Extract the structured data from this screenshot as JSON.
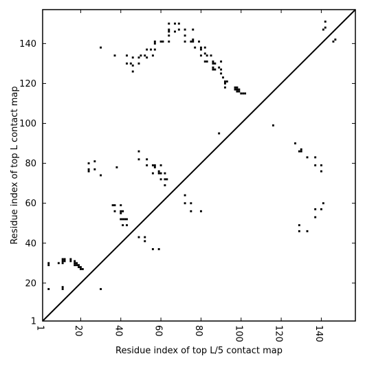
{
  "chart_data": {
    "type": "scatter",
    "xlabel": "Residue index of top L/5 contact map",
    "ylabel": "Residue index of top L contact map",
    "xlim": [
      1,
      157
    ],
    "ylim": [
      1,
      157
    ],
    "x_ticks": [
      1,
      20,
      40,
      60,
      80,
      100,
      120,
      140
    ],
    "y_ticks": [
      1,
      20,
      40,
      60,
      80,
      100,
      120,
      140
    ],
    "diagonal": true,
    "marker_color": "#000000",
    "series": [
      {
        "values": [
          [
            30,
            138
          ],
          [
            37,
            134
          ],
          [
            43,
            134
          ],
          [
            43,
            130
          ],
          [
            45,
            130
          ],
          [
            46,
            129
          ],
          [
            46,
            126
          ],
          [
            46,
            133
          ],
          [
            49,
            133
          ],
          [
            49,
            130
          ],
          [
            50,
            134
          ],
          [
            52,
            134
          ],
          [
            53,
            133
          ],
          [
            53,
            137
          ],
          [
            55,
            137
          ],
          [
            56,
            134
          ],
          [
            57,
            137
          ],
          [
            57,
            140
          ],
          [
            57,
            141
          ],
          [
            60,
            141
          ],
          [
            61,
            141
          ],
          [
            64,
            141
          ],
          [
            64,
            144
          ],
          [
            64,
            146
          ],
          [
            64,
            147
          ],
          [
            64,
            150
          ],
          [
            67,
            150
          ],
          [
            67,
            146
          ],
          [
            69,
            147
          ],
          [
            69,
            150
          ],
          [
            72,
            147
          ],
          [
            72,
            144
          ],
          [
            72,
            141
          ],
          [
            75,
            141
          ],
          [
            76,
            141
          ],
          [
            76,
            142
          ],
          [
            76,
            147
          ],
          [
            77,
            138
          ],
          [
            79,
            141
          ],
          [
            80,
            138
          ],
          [
            80,
            137
          ],
          [
            80,
            134
          ],
          [
            82,
            138
          ],
          [
            82,
            135
          ],
          [
            82,
            131
          ],
          [
            83,
            134
          ],
          [
            83,
            131
          ],
          [
            85,
            134
          ],
          [
            86,
            131
          ],
          [
            86,
            130
          ],
          [
            86,
            128
          ],
          [
            86,
            127
          ],
          [
            87,
            130
          ],
          [
            87,
            127
          ],
          [
            89,
            128
          ],
          [
            90,
            131
          ],
          [
            90,
            127
          ],
          [
            90,
            125
          ],
          [
            91,
            123
          ],
          [
            92,
            121
          ],
          [
            92,
            120
          ],
          [
            92,
            118
          ],
          [
            93,
            121
          ],
          [
            97,
            118
          ],
          [
            97,
            117
          ],
          [
            98,
            118
          ],
          [
            98,
            117
          ],
          [
            98,
            116
          ],
          [
            99,
            117
          ],
          [
            99,
            116
          ],
          [
            100,
            115
          ],
          [
            101,
            115
          ],
          [
            102,
            115
          ],
          [
            89,
            95
          ],
          [
            116,
            99
          ],
          [
            127,
            90
          ],
          [
            129,
            86
          ],
          [
            130,
            86
          ],
          [
            130,
            87
          ],
          [
            133,
            83
          ],
          [
            137,
            83
          ],
          [
            137,
            79
          ],
          [
            140,
            79
          ],
          [
            140,
            76
          ],
          [
            141,
            147
          ],
          [
            142,
            148
          ],
          [
            142,
            151
          ],
          [
            146,
            141
          ],
          [
            147,
            142
          ],
          [
            24,
            80
          ],
          [
            24,
            77
          ],
          [
            24,
            76
          ],
          [
            27,
            81
          ],
          [
            27,
            77
          ],
          [
            30,
            74
          ],
          [
            38,
            78
          ],
          [
            49,
            86
          ],
          [
            49,
            82
          ],
          [
            53,
            82
          ],
          [
            53,
            79
          ],
          [
            56,
            79
          ],
          [
            56,
            75
          ],
          [
            57,
            79
          ],
          [
            57,
            78
          ],
          [
            59,
            76
          ],
          [
            59,
            75
          ],
          [
            60,
            79
          ],
          [
            60,
            75
          ],
          [
            60,
            72
          ],
          [
            62,
            75
          ],
          [
            62,
            72
          ],
          [
            62,
            69
          ],
          [
            63,
            72
          ],
          [
            36,
            59
          ],
          [
            37,
            59
          ],
          [
            37,
            56
          ],
          [
            40,
            59
          ],
          [
            40,
            56
          ],
          [
            40,
            55
          ],
          [
            41,
            56
          ],
          [
            40,
            52
          ],
          [
            41,
            52
          ],
          [
            42,
            52
          ],
          [
            43,
            52
          ],
          [
            41,
            49
          ],
          [
            43,
            49
          ],
          [
            49,
            43
          ],
          [
            52,
            43
          ],
          [
            52,
            41
          ],
          [
            56,
            37
          ],
          [
            59,
            37
          ],
          [
            72,
            64
          ],
          [
            72,
            60
          ],
          [
            75,
            60
          ],
          [
            75,
            56
          ],
          [
            80,
            56
          ],
          [
            129,
            49
          ],
          [
            129,
            46
          ],
          [
            133,
            46
          ],
          [
            137,
            57
          ],
          [
            137,
            53
          ],
          [
            140,
            57
          ],
          [
            141,
            60
          ],
          [
            4,
            30
          ],
          [
            4,
            29
          ],
          [
            4,
            17
          ],
          [
            9,
            30
          ],
          [
            11,
            32
          ],
          [
            11,
            31
          ],
          [
            11,
            30
          ],
          [
            11,
            18
          ],
          [
            11,
            17
          ],
          [
            12,
            32
          ],
          [
            12,
            31
          ],
          [
            15,
            32
          ],
          [
            15,
            31
          ],
          [
            17,
            31
          ],
          [
            17,
            30
          ],
          [
            17,
            29
          ],
          [
            18,
            30
          ],
          [
            18,
            29
          ],
          [
            19,
            29
          ],
          [
            19,
            28
          ],
          [
            20,
            28
          ],
          [
            20,
            27
          ],
          [
            21,
            27
          ],
          [
            30,
            17
          ]
        ]
      }
    ]
  }
}
